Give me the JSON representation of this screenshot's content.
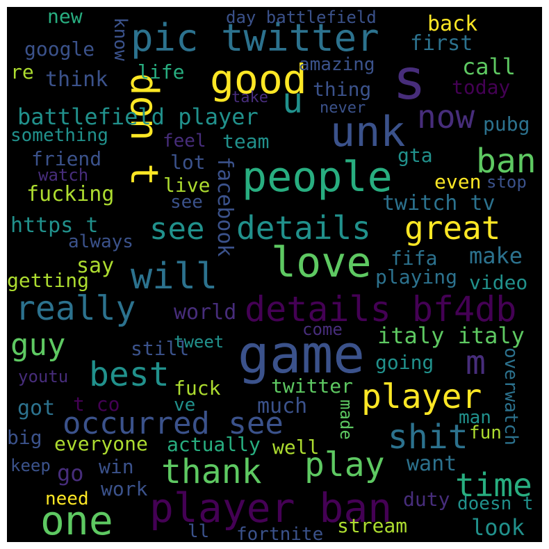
{
  "palette": {
    "background": "#000000",
    "frame": "#ffffff",
    "dark_purple": "#440154",
    "purple": "#472d7b",
    "indigo": "#3b528b",
    "blue": "#2c728e",
    "teal": "#21918c",
    "green_teal": "#28ae80",
    "green": "#5ec962",
    "lime": "#addc30",
    "yellow": "#fde725"
  },
  "words": [
    {
      "id": "pic-twitter",
      "text": "pic twitter",
      "color": "#2c728e"
    },
    {
      "id": "game",
      "text": "game",
      "color": "#3b528b"
    },
    {
      "id": "player-ban",
      "text": "player ban",
      "color": "#440154"
    },
    {
      "id": "details-bf4db",
      "text": "details bf4db",
      "color": "#440154"
    },
    {
      "id": "s",
      "text": "s",
      "color": "#472d7b"
    },
    {
      "id": "unk",
      "text": "unk",
      "color": "#3b528b"
    },
    {
      "id": "good",
      "text": "good",
      "color": "#fde725"
    },
    {
      "id": "dont",
      "text": "don t",
      "color": "#fde725"
    },
    {
      "id": "people",
      "text": "people",
      "color": "#28ae80"
    },
    {
      "id": "now",
      "text": "now",
      "color": "#472d7b"
    },
    {
      "id": "u",
      "text": "u",
      "color": "#21918c"
    },
    {
      "id": "love",
      "text": "love",
      "color": "#5ec962"
    },
    {
      "id": "ban",
      "text": "ban",
      "color": "#5ec962"
    },
    {
      "id": "details",
      "text": "details",
      "color": "#21918c"
    },
    {
      "id": "see-1",
      "text": "see",
      "color": "#21918c"
    },
    {
      "id": "great",
      "text": "great",
      "color": "#fde725"
    },
    {
      "id": "will",
      "text": "will",
      "color": "#2c728e"
    },
    {
      "id": "really",
      "text": "really",
      "color": "#2c728e"
    },
    {
      "id": "guy",
      "text": "guy",
      "color": "#5ec962"
    },
    {
      "id": "best",
      "text": "best",
      "color": "#21918c"
    },
    {
      "id": "m",
      "text": "m",
      "color": "#472d7b"
    },
    {
      "id": "player",
      "text": "player",
      "color": "#fde725"
    },
    {
      "id": "occurred-see",
      "text": "occurred see",
      "color": "#3b528b"
    },
    {
      "id": "shit",
      "text": "shit",
      "color": "#2c728e"
    },
    {
      "id": "thank",
      "text": "thank",
      "color": "#5ec962"
    },
    {
      "id": "play",
      "text": "play",
      "color": "#5ec962"
    },
    {
      "id": "one",
      "text": "one",
      "color": "#5ec962"
    },
    {
      "id": "time",
      "text": "time",
      "color": "#28ae80"
    },
    {
      "id": "battlefield-player",
      "text": "battlefield player",
      "color": "#21918c"
    },
    {
      "id": "facebook",
      "text": "facebook",
      "color": "#3b528b"
    },
    {
      "id": "italy-italy",
      "text": "italy italy",
      "color": "#5ec962"
    },
    {
      "id": "twitch-tv",
      "text": "twitch tv",
      "color": "#2c728e"
    },
    {
      "id": "https-t",
      "text": "https t",
      "color": "#21918c"
    },
    {
      "id": "new",
      "text": "new",
      "color": "#28ae80"
    },
    {
      "id": "day-battlefield",
      "text": "day battlefield",
      "color": "#3b528b"
    },
    {
      "id": "back",
      "text": "back",
      "color": "#fde725"
    },
    {
      "id": "google",
      "text": "google",
      "color": "#3b528b"
    },
    {
      "id": "know",
      "text": "know",
      "color": "#3b528b"
    },
    {
      "id": "first",
      "text": "first",
      "color": "#2c728e"
    },
    {
      "id": "re",
      "text": "re",
      "color": "#addc30"
    },
    {
      "id": "life",
      "text": "life",
      "color": "#28ae80"
    },
    {
      "id": "amazing",
      "text": "amazing",
      "color": "#3b528b"
    },
    {
      "id": "call",
      "text": "call",
      "color": "#5ec962"
    },
    {
      "id": "think",
      "text": "think",
      "color": "#3b528b"
    },
    {
      "id": "thing",
      "text": "thing",
      "color": "#3b528b"
    },
    {
      "id": "today",
      "text": "today",
      "color": "#440154"
    },
    {
      "id": "take",
      "text": "take",
      "color": "#472d7b"
    },
    {
      "id": "never",
      "text": "never",
      "color": "#3b528b"
    },
    {
      "id": "something",
      "text": "something",
      "color": "#21918c"
    },
    {
      "id": "pubg",
      "text": "pubg",
      "color": "#2c728e"
    },
    {
      "id": "feel",
      "text": "feel",
      "color": "#472d7b"
    },
    {
      "id": "team",
      "text": "team",
      "color": "#21918c"
    },
    {
      "id": "friend",
      "text": "friend",
      "color": "#3b528b"
    },
    {
      "id": "gta",
      "text": "gta",
      "color": "#21918c"
    },
    {
      "id": "watch",
      "text": "watch",
      "color": "#472d7b"
    },
    {
      "id": "lot",
      "text": "lot",
      "color": "#3b528b"
    },
    {
      "id": "live",
      "text": "live",
      "color": "#addc30"
    },
    {
      "id": "even",
      "text": "even",
      "color": "#fde725"
    },
    {
      "id": "stop",
      "text": "stop",
      "color": "#3b528b"
    },
    {
      "id": "fucking",
      "text": "fucking",
      "color": "#addc30"
    },
    {
      "id": "see-2",
      "text": "see",
      "color": "#3b528b"
    },
    {
      "id": "always",
      "text": "always",
      "color": "#3b528b"
    },
    {
      "id": "say",
      "text": "say",
      "color": "#addc30"
    },
    {
      "id": "fifa",
      "text": "fifa",
      "color": "#2c728e"
    },
    {
      "id": "make",
      "text": "make",
      "color": "#2c728e"
    },
    {
      "id": "getting",
      "text": "getting",
      "color": "#addc30"
    },
    {
      "id": "playing",
      "text": "playing",
      "color": "#2c728e"
    },
    {
      "id": "video",
      "text": "video",
      "color": "#21918c"
    },
    {
      "id": "world",
      "text": "world",
      "color": "#472d7b"
    },
    {
      "id": "come",
      "text": "come",
      "color": "#472d7b"
    },
    {
      "id": "still",
      "text": "still",
      "color": "#3b528b"
    },
    {
      "id": "tweet",
      "text": "tweet",
      "color": "#21918c"
    },
    {
      "id": "going",
      "text": "going",
      "color": "#21918c"
    },
    {
      "id": "youtu",
      "text": "youtu",
      "color": "#472d7b"
    },
    {
      "id": "overwatch",
      "text": "overwatch",
      "color": "#2c728e"
    },
    {
      "id": "fuck",
      "text": "fuck",
      "color": "#addc30"
    },
    {
      "id": "twitter",
      "text": "twitter",
      "color": "#5ec962"
    },
    {
      "id": "t-co",
      "text": "t co",
      "color": "#440154"
    },
    {
      "id": "got",
      "text": "got",
      "color": "#2c728e"
    },
    {
      "id": "ve",
      "text": "ve",
      "color": "#21918c"
    },
    {
      "id": "much",
      "text": "much",
      "color": "#3b528b"
    },
    {
      "id": "made",
      "text": "made",
      "color": "#5ec962"
    },
    {
      "id": "man",
      "text": "man",
      "color": "#21918c"
    },
    {
      "id": "big",
      "text": "big",
      "color": "#3b528b"
    },
    {
      "id": "everyone",
      "text": "everyone",
      "color": "#addc30"
    },
    {
      "id": "actually",
      "text": "actually",
      "color": "#28ae80"
    },
    {
      "id": "well",
      "text": "well",
      "color": "#addc30"
    },
    {
      "id": "fun",
      "text": "fun",
      "color": "#addc30"
    },
    {
      "id": "keep",
      "text": "keep",
      "color": "#3b528b"
    },
    {
      "id": "go",
      "text": "go",
      "color": "#472d7b"
    },
    {
      "id": "win",
      "text": "win",
      "color": "#3b528b"
    },
    {
      "id": "want",
      "text": "want",
      "color": "#2c728e"
    },
    {
      "id": "need",
      "text": "need",
      "color": "#fde725"
    },
    {
      "id": "work",
      "text": "work",
      "color": "#3b528b"
    },
    {
      "id": "duty",
      "text": "duty",
      "color": "#472d7b"
    },
    {
      "id": "doesn-t",
      "text": "doesn t",
      "color": "#21918c"
    },
    {
      "id": "ll",
      "text": "ll",
      "color": "#3b528b"
    },
    {
      "id": "fortnite",
      "text": "fortnite",
      "color": "#3b528b"
    },
    {
      "id": "stream",
      "text": "stream",
      "color": "#addc30"
    },
    {
      "id": "look",
      "text": "look",
      "color": "#21918c"
    }
  ]
}
